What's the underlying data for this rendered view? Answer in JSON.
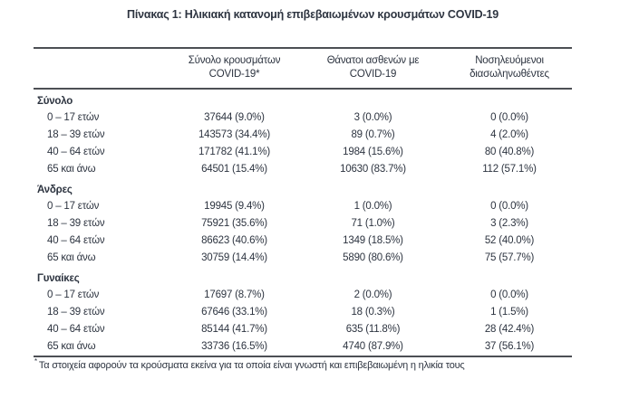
{
  "title": "Πίνακας 1: Ηλικιακή κατανομή επιβεβαιωμένων κρουσμάτων COVID-19",
  "table": {
    "header": {
      "col2": {
        "line1": "Σύνολο κρουσμάτων",
        "line2": "COVID-19*"
      },
      "col3": {
        "line1": "Θάνατοι ασθενών με",
        "line2": "COVID-19"
      },
      "col4": {
        "line1": "Νοσηλευόμενοι",
        "line2": "διασωληνωθέντες"
      }
    },
    "sections": [
      {
        "label": "Σύνολο",
        "rows": [
          {
            "age": "0 – 17 ετών",
            "cases": "37644 (9.0%)",
            "deaths": "3 (0.0%)",
            "intubated": "0 (0.0%)"
          },
          {
            "age": "18 – 39 ετών",
            "cases": "143573 (34.4%)",
            "deaths": "89 (0.7%)",
            "intubated": "4 (2.0%)"
          },
          {
            "age": "40 – 64 ετών",
            "cases": "171782 (41.1%)",
            "deaths": "1984 (15.6%)",
            "intubated": "80 (40.8%)"
          },
          {
            "age": "65 και άνω",
            "cases": "64501 (15.4%)",
            "deaths": "10630 (83.7%)",
            "intubated": "112 (57.1%)"
          }
        ]
      },
      {
        "label": "Άνδρες",
        "rows": [
          {
            "age": "0 – 17 ετών",
            "cases": "19945 (9.4%)",
            "deaths": "1 (0.0%)",
            "intubated": "0 (0.0%)"
          },
          {
            "age": "18 – 39 ετών",
            "cases": "75921 (35.6%)",
            "deaths": "71 (1.0%)",
            "intubated": "3 (2.3%)"
          },
          {
            "age": "40 – 64 ετών",
            "cases": "86623 (40.6%)",
            "deaths": "1349 (18.5%)",
            "intubated": "52 (40.0%)"
          },
          {
            "age": "65 και άνω",
            "cases": "30759 (14.4%)",
            "deaths": "5890 (80.6%)",
            "intubated": "75 (57.7%)"
          }
        ]
      },
      {
        "label": "Γυναίκες",
        "rows": [
          {
            "age": "0 – 17 ετών",
            "cases": "17697 (8.7%)",
            "deaths": "2 (0.0%)",
            "intubated": "0 (0.0%)"
          },
          {
            "age": "18 – 39 ετών",
            "cases": "67646 (33.1%)",
            "deaths": "18 (0.3%)",
            "intubated": "1 (1.5%)"
          },
          {
            "age": "40 – 64 ετών",
            "cases": "85144 (41.7%)",
            "deaths": "635 (11.8%)",
            "intubated": "28 (42.4%)"
          },
          {
            "age": "65 και άνω",
            "cases": "33736 (16.5%)",
            "deaths": "4740 (87.9%)",
            "intubated": "37 (56.1%)"
          }
        ]
      }
    ]
  },
  "footnote": {
    "marker": "*",
    "text": "Τα στοιχεία αφορούν τα κρούσματα εκείνα για τα οποία είναι γνωστή και επιβεβαιωμένη η ηλικία τους"
  },
  "colors": {
    "text": "#2d3440",
    "rule": "#4c4f54",
    "background": "#ffffff"
  }
}
